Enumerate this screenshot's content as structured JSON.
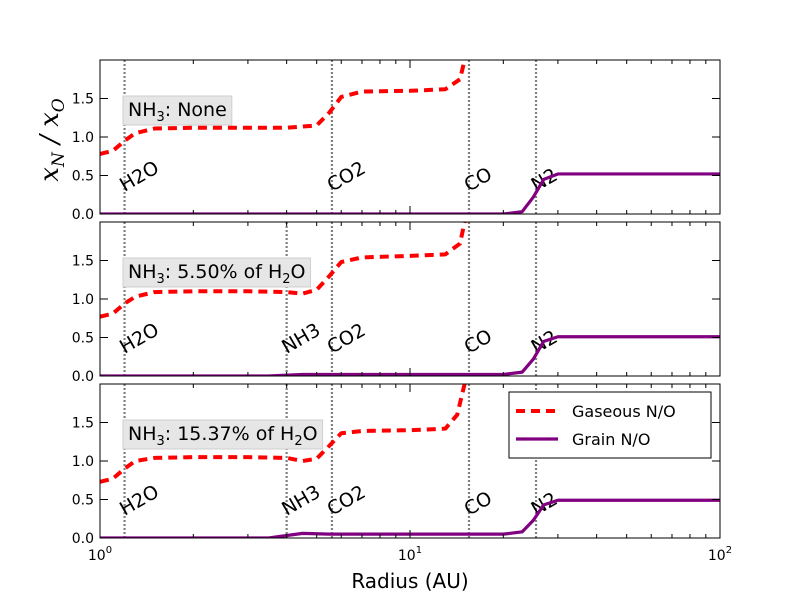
{
  "chart_data": {
    "type": "line",
    "xlabel": "Radius (AU)",
    "ylabel": "x_N / x_O",
    "xscale": "log",
    "xlim": [
      1,
      100
    ],
    "ylim": [
      0,
      2.0
    ],
    "x_ticks": [
      "10^0",
      "10^1",
      "10^2"
    ],
    "y_ticks": [
      "0.0",
      "0.5",
      "1.0",
      "1.5"
    ],
    "legend": {
      "placement": "upper-right (bottom panel)",
      "entries": [
        "Gaseous N/O",
        "Grain N/O"
      ]
    },
    "colors": {
      "gas": "#ff0000",
      "grain": "#800080",
      "snowline": "#808080"
    },
    "panels": [
      {
        "annotation": {
          "prefix": "NH",
          "sub": "3",
          "mid": ": None",
          "tail": "",
          "tail_sub": "",
          "tail_end": ""
        },
        "snowlines": [
          {
            "label": "H2O",
            "radius": 1.2
          },
          {
            "label": "CO2",
            "radius": 5.6
          },
          {
            "label": "CO",
            "radius": 15.5
          },
          {
            "label": "N2",
            "radius": 25.5
          }
        ],
        "series": [
          {
            "name": "Gaseous N/O",
            "x": [
              1.0,
              1.1,
              1.2,
              1.3,
              1.5,
              2.0,
              3.0,
              4.0,
              5.0,
              5.5,
              6.0,
              7.0,
              10.0,
              13.0,
              14.5,
              15.0
            ],
            "y": [
              0.78,
              0.82,
              0.95,
              1.05,
              1.11,
              1.12,
              1.12,
              1.12,
              1.15,
              1.32,
              1.52,
              1.59,
              1.6,
              1.62,
              1.75,
              2.0
            ]
          },
          {
            "name": "Grain N/O",
            "x": [
              1.0,
              20.0,
              23.0,
              25.0,
              27.0,
              30.0,
              40.0,
              100.0
            ],
            "y": [
              0.0,
              0.0,
              0.03,
              0.22,
              0.45,
              0.52,
              0.52,
              0.52
            ]
          }
        ]
      },
      {
        "annotation": {
          "prefix": "NH",
          "sub": "3",
          "mid": ": 5.50% of H",
          "tail": "2",
          "tail_sub": "",
          "tail_end": "O"
        },
        "snowlines": [
          {
            "label": "H2O",
            "radius": 1.2
          },
          {
            "label": "NH3",
            "radius": 4.0
          },
          {
            "label": "CO2",
            "radius": 5.6
          },
          {
            "label": "CO",
            "radius": 15.5
          },
          {
            "label": "N2",
            "radius": 25.5
          }
        ],
        "series": [
          {
            "name": "Gaseous N/O",
            "x": [
              1.0,
              1.1,
              1.2,
              1.3,
              1.5,
              2.0,
              3.0,
              4.0,
              4.5,
              5.0,
              5.5,
              6.0,
              7.0,
              10.0,
              13.0,
              14.5,
              15.0
            ],
            "y": [
              0.77,
              0.81,
              0.94,
              1.03,
              1.09,
              1.1,
              1.1,
              1.09,
              1.07,
              1.12,
              1.3,
              1.48,
              1.54,
              1.56,
              1.58,
              1.72,
              2.0
            ]
          },
          {
            "name": "Grain N/O",
            "x": [
              1.0,
              3.5,
              4.5,
              5.5,
              10.0,
              15.0,
              20.0,
              23.0,
              25.0,
              27.0,
              30.0,
              40.0,
              100.0
            ],
            "y": [
              0.0,
              0.0,
              0.02,
              0.02,
              0.02,
              0.02,
              0.02,
              0.05,
              0.22,
              0.45,
              0.51,
              0.51,
              0.51
            ]
          }
        ]
      },
      {
        "annotation": {
          "prefix": "NH",
          "sub": "3",
          "mid": ": 15.37% of H",
          "tail": "2",
          "tail_sub": "",
          "tail_end": "O"
        },
        "snowlines": [
          {
            "label": "H2O",
            "radius": 1.2
          },
          {
            "label": "NH3",
            "radius": 4.0
          },
          {
            "label": "CO2",
            "radius": 5.6
          },
          {
            "label": "CO",
            "radius": 15.5
          },
          {
            "label": "N2",
            "radius": 25.5
          }
        ],
        "series": [
          {
            "name": "Gaseous N/O",
            "x": [
              1.0,
              1.1,
              1.2,
              1.3,
              1.5,
              2.0,
              3.0,
              4.0,
              4.5,
              5.0,
              5.5,
              6.0,
              7.0,
              10.0,
              13.0,
              14.2,
              15.0
            ],
            "y": [
              0.73,
              0.77,
              0.9,
              1.0,
              1.04,
              1.05,
              1.05,
              1.04,
              1.0,
              1.03,
              1.2,
              1.36,
              1.39,
              1.4,
              1.42,
              1.6,
              2.0
            ]
          },
          {
            "name": "Grain N/O",
            "x": [
              1.0,
              3.5,
              4.5,
              5.5,
              10.0,
              15.0,
              20.0,
              23.0,
              25.0,
              27.0,
              30.0,
              40.0,
              100.0
            ],
            "y": [
              0.0,
              0.0,
              0.06,
              0.05,
              0.05,
              0.05,
              0.05,
              0.08,
              0.23,
              0.43,
              0.49,
              0.49,
              0.49
            ]
          }
        ]
      }
    ]
  }
}
